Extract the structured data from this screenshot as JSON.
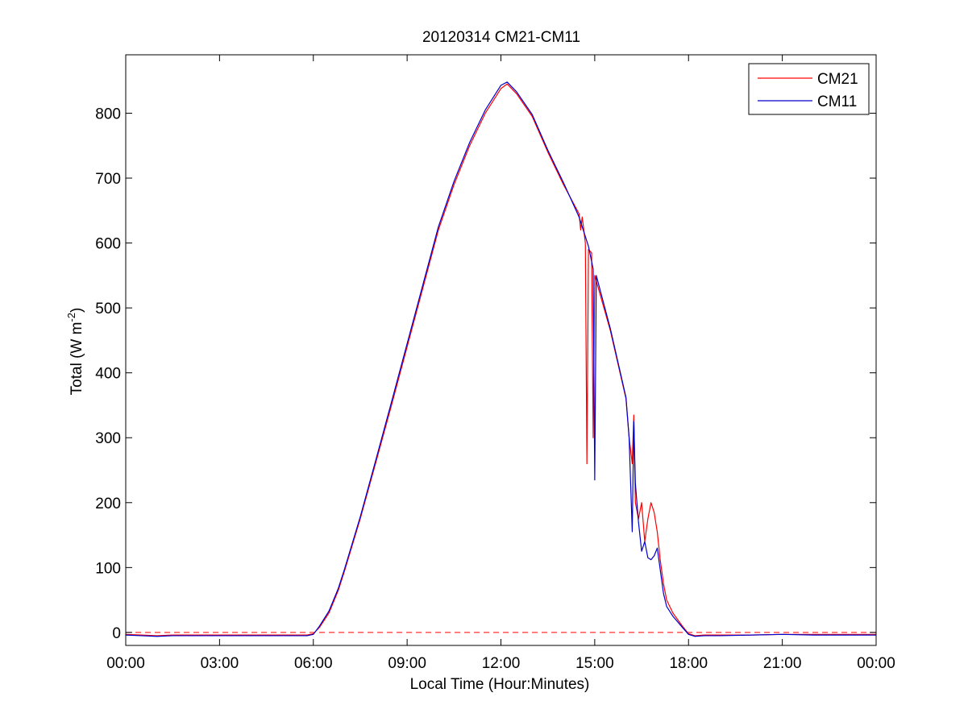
{
  "chart_data": {
    "type": "line",
    "title": "20120314 CM21-CM11",
    "xlabel": "Local Time (Hour:Minutes)",
    "ylabel": {
      "main": "Total (W m",
      "sup": "-2",
      "close": ")"
    },
    "x_unit": "hours",
    "xlim": [
      0,
      24
    ],
    "ylim": [
      -20,
      890
    ],
    "x_ticks": [
      0,
      3,
      6,
      9,
      12,
      15,
      18,
      21,
      24
    ],
    "x_tick_labels": [
      "00:00",
      "03:00",
      "06:00",
      "09:00",
      "12:00",
      "15:00",
      "18:00",
      "21:00",
      "00:00"
    ],
    "y_ticks": [
      0,
      100,
      200,
      300,
      400,
      500,
      600,
      700,
      800
    ],
    "y_tick_labels": [
      "0",
      "100",
      "200",
      "300",
      "400",
      "500",
      "600",
      "700",
      "800"
    ],
    "grid": false,
    "legend_position": "top-right",
    "reference_line": {
      "y": 0,
      "color": "#ff0000",
      "style": "dashed"
    },
    "series": [
      {
        "name": "CM21",
        "color": "#ff0000",
        "points": [
          [
            0.0,
            -3
          ],
          [
            0.5,
            -4
          ],
          [
            1.0,
            -5
          ],
          [
            1.5,
            -4
          ],
          [
            2.0,
            -4
          ],
          [
            3.0,
            -4
          ],
          [
            4.0,
            -4
          ],
          [
            5.0,
            -4
          ],
          [
            5.8,
            -4
          ],
          [
            6.0,
            -2
          ],
          [
            6.2,
            8
          ],
          [
            6.5,
            30
          ],
          [
            6.8,
            65
          ],
          [
            7.0,
            95
          ],
          [
            7.5,
            175
          ],
          [
            8.0,
            262
          ],
          [
            8.5,
            350
          ],
          [
            9.0,
            440
          ],
          [
            9.5,
            530
          ],
          [
            10.0,
            620
          ],
          [
            10.5,
            690
          ],
          [
            11.0,
            750
          ],
          [
            11.5,
            800
          ],
          [
            12.0,
            838
          ],
          [
            12.2,
            845
          ],
          [
            12.5,
            830
          ],
          [
            13.0,
            795
          ],
          [
            13.5,
            740
          ],
          [
            14.0,
            690
          ],
          [
            14.5,
            645
          ],
          [
            14.55,
            620
          ],
          [
            14.6,
            640
          ],
          [
            14.7,
            600
          ],
          [
            14.75,
            260
          ],
          [
            14.8,
            590
          ],
          [
            14.9,
            585
          ],
          [
            14.95,
            300
          ],
          [
            15.0,
            550
          ],
          [
            15.5,
            465
          ],
          [
            16.0,
            360
          ],
          [
            16.1,
            300
          ],
          [
            16.2,
            260
          ],
          [
            16.25,
            335
          ],
          [
            16.3,
            200
          ],
          [
            16.4,
            175
          ],
          [
            16.5,
            200
          ],
          [
            16.6,
            140
          ],
          [
            16.7,
            175
          ],
          [
            16.8,
            200
          ],
          [
            16.9,
            185
          ],
          [
            17.0,
            155
          ],
          [
            17.1,
            110
          ],
          [
            17.2,
            75
          ],
          [
            17.3,
            50
          ],
          [
            17.5,
            30
          ],
          [
            17.8,
            10
          ],
          [
            18.0,
            -2
          ],
          [
            18.2,
            -5
          ],
          [
            18.5,
            -4
          ],
          [
            19.0,
            -4
          ],
          [
            20.0,
            -4
          ],
          [
            21.0,
            -3
          ],
          [
            22.0,
            -3
          ],
          [
            23.0,
            -3
          ],
          [
            24.0,
            -3
          ]
        ]
      },
      {
        "name": "CM11",
        "color": "#0000cc",
        "points": [
          [
            0.0,
            -4
          ],
          [
            0.5,
            -5
          ],
          [
            1.0,
            -6
          ],
          [
            1.5,
            -5
          ],
          [
            2.0,
            -5
          ],
          [
            3.0,
            -5
          ],
          [
            4.0,
            -5
          ],
          [
            5.0,
            -5
          ],
          [
            5.8,
            -5
          ],
          [
            6.0,
            -3
          ],
          [
            6.2,
            10
          ],
          [
            6.5,
            33
          ],
          [
            6.8,
            68
          ],
          [
            7.0,
            98
          ],
          [
            7.5,
            178
          ],
          [
            8.0,
            266
          ],
          [
            8.5,
            355
          ],
          [
            9.0,
            445
          ],
          [
            9.5,
            535
          ],
          [
            10.0,
            625
          ],
          [
            10.5,
            695
          ],
          [
            11.0,
            755
          ],
          [
            11.5,
            805
          ],
          [
            12.0,
            843
          ],
          [
            12.2,
            848
          ],
          [
            12.5,
            833
          ],
          [
            13.0,
            798
          ],
          [
            13.5,
            743
          ],
          [
            14.0,
            693
          ],
          [
            14.5,
            640
          ],
          [
            14.6,
            625
          ],
          [
            14.7,
            610
          ],
          [
            14.8,
            595
          ],
          [
            14.95,
            560
          ],
          [
            15.0,
            235
          ],
          [
            15.05,
            550
          ],
          [
            15.5,
            468
          ],
          [
            16.0,
            362
          ],
          [
            16.1,
            300
          ],
          [
            16.2,
            155
          ],
          [
            16.25,
            325
          ],
          [
            16.3,
            230
          ],
          [
            16.4,
            170
          ],
          [
            16.5,
            125
          ],
          [
            16.6,
            140
          ],
          [
            16.7,
            115
          ],
          [
            16.8,
            112
          ],
          [
            16.9,
            118
          ],
          [
            17.0,
            130
          ],
          [
            17.1,
            95
          ],
          [
            17.2,
            60
          ],
          [
            17.3,
            40
          ],
          [
            17.5,
            25
          ],
          [
            17.8,
            8
          ],
          [
            18.0,
            -3
          ],
          [
            18.2,
            -6
          ],
          [
            18.5,
            -5
          ],
          [
            19.0,
            -5
          ],
          [
            20.0,
            -4
          ],
          [
            21.0,
            -3
          ],
          [
            22.0,
            -4
          ],
          [
            23.0,
            -4
          ],
          [
            24.0,
            -4
          ]
        ]
      }
    ]
  }
}
